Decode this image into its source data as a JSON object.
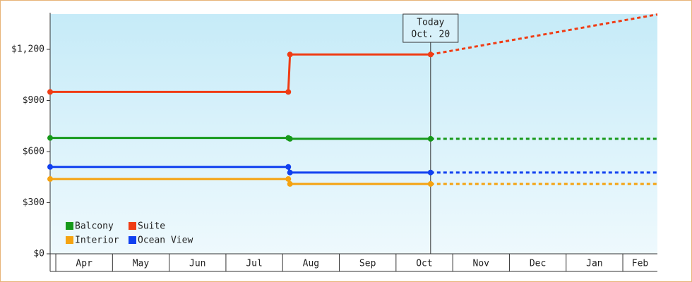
{
  "chart_data": {
    "type": "line",
    "months": [
      "Apr",
      "May",
      "Jun",
      "Jul",
      "Aug",
      "Sep",
      "Oct",
      "Nov",
      "Dec",
      "Jan",
      "Feb"
    ],
    "xlim": [
      -0.1,
      10.61
    ],
    "ylim": [
      0,
      1407
    ],
    "yticks": [
      {
        "value": 0,
        "label": "$0"
      },
      {
        "value": 300,
        "label": "$300"
      },
      {
        "value": 600,
        "label": "$600"
      },
      {
        "value": 900,
        "label": "$900"
      },
      {
        "value": 1200,
        "label": "$1,200"
      }
    ],
    "x": [
      -0.1,
      4.1,
      4.13,
      6.61
    ],
    "forecast_x": [
      6.61,
      10.61
    ],
    "today": {
      "x": 6.61,
      "label": [
        "Today",
        "Oct. 20"
      ]
    },
    "series": [
      {
        "name": "Balcony",
        "color": "#16991a",
        "values": [
          680,
          680,
          675,
          675
        ],
        "forecast": [
          675,
          675
        ]
      },
      {
        "name": "Suite",
        "color": "#f03c14",
        "values": [
          950,
          950,
          1170,
          1170
        ],
        "forecast": [
          1170,
          1405
        ]
      },
      {
        "name": "Interior",
        "color": "#f5a311",
        "values": [
          439,
          439,
          410,
          410
        ],
        "forecast": [
          410,
          410
        ]
      },
      {
        "name": "Ocean View",
        "color": "#1040f0",
        "values": [
          510,
          510,
          477,
          477
        ],
        "forecast": [
          477,
          477
        ]
      }
    ]
  }
}
